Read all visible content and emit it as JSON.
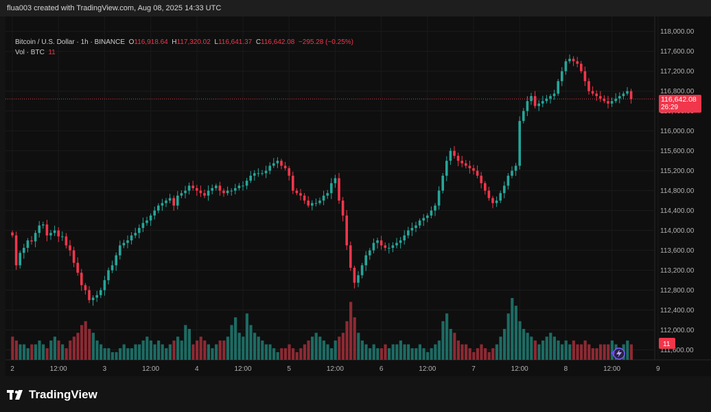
{
  "header": {
    "caption": "flua003 created with TradingView.com, Aug 08, 2025 14:33 UTC"
  },
  "legend": {
    "symbol": "Bitcoin / U.S. Dollar · 1h · BINANCE",
    "o_label": "O",
    "o_value": "116,918.64",
    "h_label": "H",
    "h_value": "117,320.02",
    "l_label": "L",
    "l_value": "116,641.37",
    "c_label": "C",
    "c_value": "116,642.08",
    "change": "−295.28 (−0.25%)",
    "vol_label": "Vol · BTC",
    "vol_value": "11"
  },
  "price_tag": {
    "price": "116,642.08",
    "countdown": "26:29"
  },
  "vol_tag": "11",
  "footer": {
    "brand": "TradingView"
  },
  "colors": {
    "up": "#26a69a",
    "down": "#f2364b",
    "up_vol": "#1d6b63",
    "down_vol": "#8c2a33",
    "background": "#0f0f0f"
  },
  "chart_data": {
    "type": "candlestick",
    "ylim": [
      111400,
      118300
    ],
    "y_ticks": [
      "118,000.00",
      "117,600.00",
      "117,200.00",
      "116,800.00",
      "116,400.00",
      "116,000.00",
      "115,600.00",
      "115,200.00",
      "114,800.00",
      "114,400.00",
      "114,000.00",
      "113,600.00",
      "113,200.00",
      "112,800.00",
      "112,400.00",
      "112,000.00",
      "111,600.00"
    ],
    "y_tick_values": [
      118000,
      117600,
      117200,
      116800,
      116400,
      116000,
      115600,
      115200,
      114800,
      114400,
      114000,
      113600,
      113200,
      112800,
      112400,
      112000,
      111600
    ],
    "x_labels": [
      "2",
      "12:00",
      "3",
      "12:00",
      "4",
      "12:00",
      "5",
      "12:00",
      "6",
      "12:00",
      "7",
      "12:00",
      "8",
      "12:00",
      "9"
    ],
    "x_label_index": [
      0,
      12,
      24,
      36,
      48,
      60,
      72,
      84,
      96,
      108,
      120,
      132,
      144,
      156,
      168
    ],
    "last_price": 116642.08,
    "close": [
      113900,
      113300,
      113550,
      113650,
      113800,
      113780,
      113950,
      114100,
      114120,
      113900,
      113950,
      114000,
      113880,
      113880,
      113700,
      113600,
      113350,
      113150,
      112900,
      112800,
      112600,
      112650,
      112700,
      112800,
      113000,
      113200,
      113300,
      113500,
      113700,
      113750,
      113800,
      113900,
      113950,
      114050,
      114150,
      114200,
      114300,
      114400,
      114500,
      114550,
      114600,
      114650,
      114500,
      114700,
      114750,
      114800,
      114900,
      114850,
      114800,
      114750,
      114700,
      114800,
      114850,
      114900,
      114800,
      114750,
      114800,
      114800,
      114850,
      114900,
      114900,
      115000,
      115100,
      115150,
      115150,
      115150,
      115200,
      115300,
      115350,
      115400,
      115300,
      115250,
      115100,
      114800,
      114750,
      114700,
      114600,
      114500,
      114550,
      114550,
      114600,
      114700,
      114750,
      114950,
      115050,
      114600,
      114300,
      113700,
      113250,
      112950,
      113100,
      113300,
      113500,
      113600,
      113750,
      113800,
      113700,
      113650,
      113650,
      113700,
      113750,
      113800,
      113900,
      114000,
      114050,
      114100,
      114200,
      114250,
      114300,
      114400,
      114500,
      114800,
      115100,
      115400,
      115600,
      115500,
      115400,
      115350,
      115300,
      115250,
      115200,
      115100,
      114950,
      114800,
      114650,
      114550,
      114600,
      114750,
      114900,
      115100,
      115200,
      115300,
      116200,
      116400,
      116600,
      116700,
      116500,
      116550,
      116600,
      116650,
      116700,
      116750,
      117000,
      117200,
      117400,
      117450,
      117400,
      117350,
      117200,
      117000,
      116800,
      116750,
      116700,
      116650,
      116600,
      116550,
      116600,
      116650,
      116700,
      116750,
      116800,
      116642.08
    ],
    "volume": [
      6,
      5,
      4,
      4,
      3,
      4,
      4,
      5,
      4,
      3,
      5,
      6,
      5,
      4,
      3,
      5,
      6,
      7,
      9,
      10,
      8,
      7,
      5,
      4,
      3,
      3,
      2,
      2,
      3,
      4,
      3,
      3,
      4,
      4,
      5,
      6,
      5,
      4,
      5,
      4,
      3,
      4,
      5,
      6,
      5,
      9,
      8,
      4,
      5,
      6,
      5,
      4,
      3,
      4,
      5,
      5,
      6,
      9,
      11,
      7,
      6,
      12,
      9,
      7,
      6,
      5,
      4,
      4,
      3,
      2,
      3,
      3,
      4,
      3,
      2,
      3,
      4,
      5,
      6,
      7,
      6,
      5,
      4,
      3,
      5,
      6,
      7,
      10,
      15,
      11,
      7,
      5,
      4,
      3,
      4,
      3,
      3,
      4,
      3,
      4,
      4,
      5,
      4,
      4,
      3,
      3,
      4,
      3,
      2,
      3,
      4,
      5,
      10,
      12,
      8,
      7,
      5,
      4,
      4,
      3,
      2,
      3,
      4,
      3,
      2,
      3,
      4,
      6,
      8,
      12,
      16,
      14,
      10,
      8,
      7,
      6,
      5,
      4,
      5,
      6,
      7,
      6,
      5,
      4,
      5,
      4,
      5,
      4,
      4,
      5,
      4,
      3,
      3,
      4,
      4,
      4,
      5,
      4,
      3,
      4,
      5,
      4
    ]
  }
}
